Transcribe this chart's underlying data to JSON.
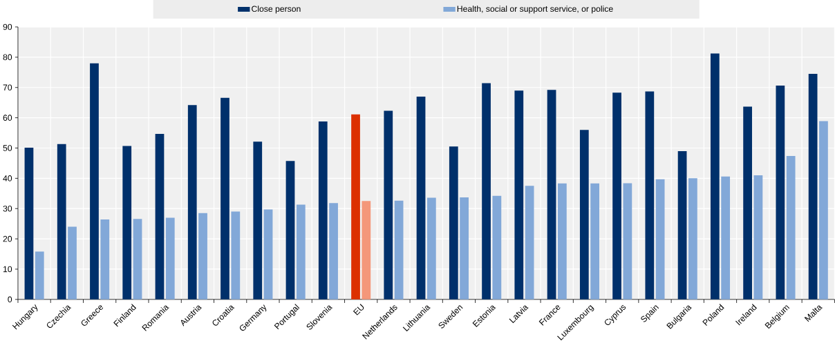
{
  "chart_data": {
    "type": "bar",
    "categories": [
      "Hungary",
      "Czechia",
      "Greece",
      "Finland",
      "Romania",
      "Austria",
      "Croatia",
      "Germany",
      "Portugal",
      "Slovenia",
      "EU",
      "Netherlands",
      "Lithuania",
      "Sweden",
      "Estonia",
      "Latvia",
      "France",
      "Luxembourg",
      "Cyprus",
      "Spain",
      "Bulgaria",
      "Poland",
      "Ireland",
      "Belgium",
      "Malta"
    ],
    "series": [
      {
        "name": "Close person",
        "color": "#00306b",
        "colors": [
          "#00306b",
          "#00306b",
          "#00306b",
          "#00306b",
          "#00306b",
          "#00306b",
          "#00306b",
          "#00306b",
          "#00306b",
          "#00306b",
          "#dc3000",
          "#00306b",
          "#00306b",
          "#00306b",
          "#00306b",
          "#00306b",
          "#00306b",
          "#00306b",
          "#00306b",
          "#00306b",
          "#00306b",
          "#00306b",
          "#00306b",
          "#00306b",
          "#00306b"
        ],
        "values": [
          50.1,
          51.3,
          78,
          50.7,
          54.7,
          64.2,
          66.6,
          52.1,
          45.7,
          58.8,
          61.1,
          62.3,
          67,
          50.5,
          71.4,
          69,
          69.2,
          56,
          68.3,
          68.7,
          49,
          81.2,
          63.7,
          70.6,
          74.5
        ]
      },
      {
        "name": "Health, social or support service, or police",
        "color": "#82a8d8",
        "colors": [
          "#82a8d8",
          "#82a8d8",
          "#82a8d8",
          "#82a8d8",
          "#82a8d8",
          "#82a8d8",
          "#82a8d8",
          "#82a8d8",
          "#82a8d8",
          "#82a8d8",
          "#f4977a",
          "#82a8d8",
          "#82a8d8",
          "#82a8d8",
          "#82a8d8",
          "#82a8d8",
          "#82a8d8",
          "#82a8d8",
          "#82a8d8",
          "#82a8d8",
          "#82a8d8",
          "#82a8d8",
          "#82a8d8",
          "#82a8d8",
          "#82a8d8"
        ],
        "values": [
          15.8,
          24,
          26.4,
          26.6,
          27,
          28.5,
          29,
          29.7,
          31.3,
          31.8,
          32.5,
          32.6,
          33.6,
          33.7,
          34.2,
          37.5,
          38.3,
          38.3,
          38.4,
          39.7,
          40,
          40.6,
          41,
          47.4,
          58.9
        ]
      }
    ],
    "ylim": [
      0,
      90
    ],
    "yticks": [
      0,
      10,
      20,
      30,
      40,
      50,
      60,
      70,
      80,
      90
    ],
    "grid": true,
    "legend": "top"
  }
}
